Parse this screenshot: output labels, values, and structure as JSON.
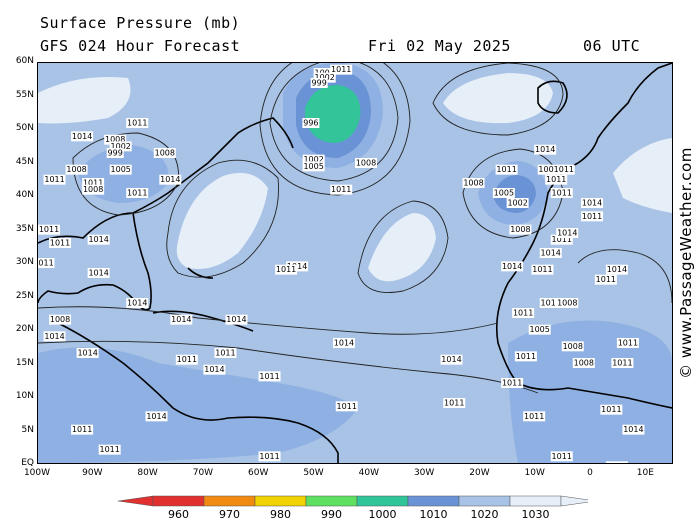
{
  "title": "Surface Pressure (mb)",
  "subtitle": "GFS 024 Hour Forecast",
  "date": "Fri 02 May 2025",
  "time": "06 UTC",
  "credit": "© www.PassageWeather.com",
  "lat_labels": [
    "60N",
    "55N",
    "50N",
    "45N",
    "40N",
    "35N",
    "30N",
    "25N",
    "20N",
    "15N",
    "10N",
    "5N",
    "EQ"
  ],
  "lon_labels": [
    "100W",
    "90W",
    "80W",
    "70W",
    "60W",
    "50W",
    "40W",
    "30W",
    "20W",
    "10W",
    "0",
    "10E"
  ],
  "legend_labels": [
    "960",
    "970",
    "980",
    "990",
    "1000",
    "1010",
    "1020",
    "1030"
  ],
  "colors": {
    "ocean_base": "#a8c3e6",
    "high_pressure": "#e6eef8",
    "low_1000": "#6a93d6",
    "low_990": "#33c49a",
    "land_line": "#000000",
    "isobar": "#222222",
    "legend": [
      "#e03030",
      "#f08a10",
      "#f2d200",
      "#5fe060",
      "#30c49a",
      "#6a93d6",
      "#a8c3e6",
      "#e6eef8"
    ]
  },
  "isobar_labels": [
    {
      "text": "1005",
      "lon": -48,
      "lat": 58.5
    },
    {
      "text": "1011",
      "lon": -45,
      "lat": 59
    },
    {
      "text": "1002",
      "lon": -48,
      "lat": 57.8
    },
    {
      "text": "999",
      "lon": -49,
      "lat": 57
    },
    {
      "text": "996",
      "lon": -50.5,
      "lat": 51
    },
    {
      "text": "1002",
      "lon": -50,
      "lat": 45.5
    },
    {
      "text": "1005",
      "lon": -50,
      "lat": 44.5
    },
    {
      "text": "1008",
      "lon": -40.5,
      "lat": 45
    },
    {
      "text": "1011",
      "lon": -45,
      "lat": 41
    },
    {
      "text": "1014",
      "lon": -92,
      "lat": 49
    },
    {
      "text": "1011",
      "lon": -82,
      "lat": 51
    },
    {
      "text": "1008",
      "lon": -86,
      "lat": 48.5
    },
    {
      "text": "1002",
      "lon": -85,
      "lat": 47.5
    },
    {
      "text": "999",
      "lon": -86,
      "lat": 46.5
    },
    {
      "text": "1008",
      "lon": -77,
      "lat": 46.5
    },
    {
      "text": "1008",
      "lon": -93,
      "lat": 44
    },
    {
      "text": "1005",
      "lon": -85,
      "lat": 44
    },
    {
      "text": "1011",
      "lon": -97,
      "lat": 42.5
    },
    {
      "text": "1011",
      "lon": -90,
      "lat": 42
    },
    {
      "text": "1008",
      "lon": -90,
      "lat": 41
    },
    {
      "text": "1011",
      "lon": -82,
      "lat": 40.5
    },
    {
      "text": "1014",
      "lon": -76,
      "lat": 42.5
    },
    {
      "text": "1011",
      "lon": -15,
      "lat": 44
    },
    {
      "text": "1014",
      "lon": -8,
      "lat": 47
    },
    {
      "text": "1001011",
      "lon": -6,
      "lat": 44
    },
    {
      "text": "1011",
      "lon": -6,
      "lat": 42.5
    },
    {
      "text": "1011",
      "lon": -5,
      "lat": 40.5
    },
    {
      "text": "1008",
      "lon": -21,
      "lat": 42
    },
    {
      "text": "1005",
      "lon": -15.5,
      "lat": 40.5
    },
    {
      "text": "1002",
      "lon": -13,
      "lat": 39
    },
    {
      "text": "1008",
      "lon": -12.5,
      "lat": 35
    },
    {
      "text": "1014",
      "lon": 0.5,
      "lat": 39
    },
    {
      "text": "1011",
      "lon": 0.5,
      "lat": 37
    },
    {
      "text": "1011",
      "lon": -5,
      "lat": 33.5
    },
    {
      "text": "1014",
      "lon": -4,
      "lat": 34.5
    },
    {
      "text": "1014",
      "lon": -7,
      "lat": 31.5
    },
    {
      "text": "1014",
      "lon": -14,
      "lat": 29.5
    },
    {
      "text": "1011",
      "lon": -8.5,
      "lat": 29
    },
    {
      "text": "1014",
      "lon": -53,
      "lat": 29.5
    },
    {
      "text": "1011",
      "lon": -55,
      "lat": 29
    },
    {
      "text": "1011",
      "lon": -99,
      "lat": 30
    },
    {
      "text": "1014",
      "lon": -89,
      "lat": 28.5
    },
    {
      "text": "1011",
      "lon": -96,
      "lat": 33
    },
    {
      "text": "1011",
      "lon": -98,
      "lat": 35
    },
    {
      "text": "1014",
      "lon": -89,
      "lat": 33.5
    },
    {
      "text": "1014",
      "lon": -82,
      "lat": 24
    },
    {
      "text": "1014",
      "lon": -74,
      "lat": 21.5
    },
    {
      "text": "1014",
      "lon": -64,
      "lat": 21.5
    },
    {
      "text": "1008",
      "lon": -96,
      "lat": 21.5
    },
    {
      "text": "1014",
      "lon": -97,
      "lat": 19
    },
    {
      "text": "1014",
      "lon": -91,
      "lat": 16.5
    },
    {
      "text": "1011",
      "lon": -73,
      "lat": 15.5
    },
    {
      "text": "1014",
      "lon": -68,
      "lat": 14
    },
    {
      "text": "1011",
      "lon": -66,
      "lat": 16.5
    },
    {
      "text": "1014",
      "lon": -44.5,
      "lat": 18
    },
    {
      "text": "1011",
      "lon": -58,
      "lat": 13
    },
    {
      "text": "1014",
      "lon": -25,
      "lat": 15.5
    },
    {
      "text": "1011",
      "lon": -44,
      "lat": 8.5
    },
    {
      "text": "1011",
      "lon": -24.5,
      "lat": 9
    },
    {
      "text": "1011",
      "lon": -92,
      "lat": 5
    },
    {
      "text": "1011",
      "lon": -87,
      "lat": 2
    },
    {
      "text": "1011",
      "lon": -58,
      "lat": 1
    },
    {
      "text": "1014",
      "lon": -78.5,
      "lat": 7
    },
    {
      "text": "1011",
      "lon": -12,
      "lat": 22.5
    },
    {
      "text": "1011",
      "lon": -7,
      "lat": 24
    },
    {
      "text": "1008",
      "lon": -4,
      "lat": 24
    },
    {
      "text": "1005",
      "lon": -9,
      "lat": 20
    },
    {
      "text": "1008",
      "lon": -3,
      "lat": 17.5
    },
    {
      "text": "1008",
      "lon": -1,
      "lat": 15
    },
    {
      "text": "1011",
      "lon": -11.5,
      "lat": 16
    },
    {
      "text": "1011",
      "lon": 7,
      "lat": 18
    },
    {
      "text": "1014",
      "lon": 5,
      "lat": 29
    },
    {
      "text": "1011",
      "lon": 3,
      "lat": 27.5
    },
    {
      "text": "1011",
      "lon": -14,
      "lat": 12
    },
    {
      "text": "1011",
      "lon": 6,
      "lat": 15
    },
    {
      "text": "1011",
      "lon": -10,
      "lat": 7
    },
    {
      "text": "1011",
      "lon": -5,
      "lat": 1
    },
    {
      "text": "1011",
      "lon": 4,
      "lat": 8
    },
    {
      "text": "1014",
      "lon": 8,
      "lat": 5
    },
    {
      "text": "1011",
      "lon": 5,
      "lat": -0.5
    }
  ]
}
